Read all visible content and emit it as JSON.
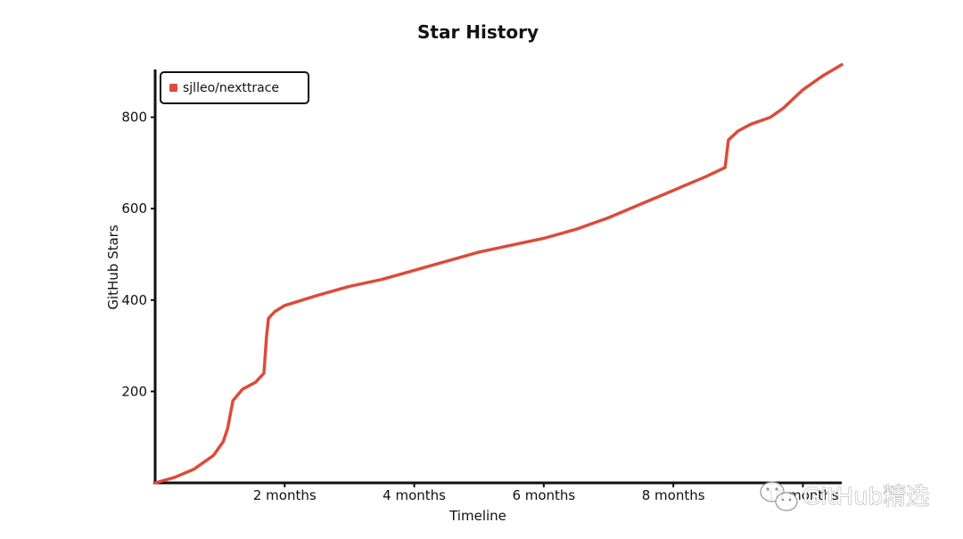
{
  "chart_data": {
    "type": "line",
    "title": "Star History",
    "xlabel": "Timeline",
    "ylabel": "GitHub Stars",
    "x_ticks": [
      {
        "label": "2 months",
        "value": 2
      },
      {
        "label": "4 months",
        "value": 4
      },
      {
        "label": "6 months",
        "value": 6
      },
      {
        "label": "8 months",
        "value": 8
      },
      {
        "label": "10 months",
        "value": 10
      }
    ],
    "y_ticks": [
      {
        "label": "200",
        "value": 200
      },
      {
        "label": "400",
        "value": 400
      },
      {
        "label": "600",
        "value": 600
      },
      {
        "label": "800",
        "value": 800
      }
    ],
    "xlim": [
      0,
      10.6
    ],
    "ylim": [
      0,
      920
    ],
    "legend_position": "top-left",
    "series": [
      {
        "name": "sjlleo/nexttrace",
        "color": "#dd4b39",
        "x": [
          0,
          0.3,
          0.6,
          0.9,
          1.05,
          1.12,
          1.2,
          1.35,
          1.55,
          1.68,
          1.72,
          1.75,
          1.85,
          2.0,
          2.5,
          3.0,
          3.5,
          4.0,
          4.5,
          5.0,
          5.5,
          6.0,
          6.5,
          7.0,
          7.5,
          8.0,
          8.5,
          8.8,
          8.85,
          9.0,
          9.2,
          9.5,
          9.7,
          10.0,
          10.3,
          10.6
        ],
        "y": [
          0,
          12,
          30,
          60,
          90,
          120,
          180,
          205,
          220,
          240,
          320,
          360,
          375,
          388,
          410,
          430,
          445,
          465,
          485,
          505,
          520,
          535,
          555,
          580,
          610,
          640,
          670,
          690,
          750,
          770,
          785,
          800,
          820,
          860,
          890,
          915
        ]
      }
    ]
  },
  "watermark": {
    "text": "GitHub精选",
    "icon": "wechat-icon"
  }
}
